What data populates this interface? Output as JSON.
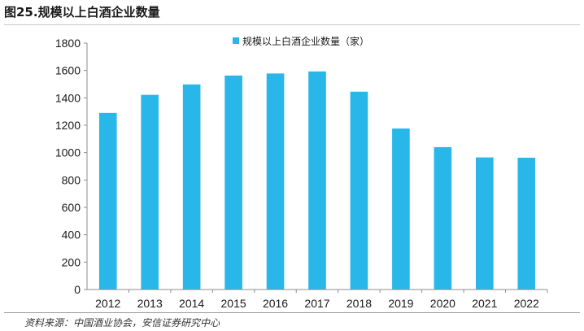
{
  "header": {
    "title": "图25.规模以上白酒企业数量"
  },
  "footer": {
    "source": "资料来源：中国酒业协会，安信证券研究中心"
  },
  "colors": {
    "bar": "#29B6E8",
    "axis": "#8c8c8c"
  },
  "chart_data": {
    "type": "bar",
    "title": "",
    "xlabel": "",
    "ylabel": "",
    "categories": [
      "2012",
      "2013",
      "2014",
      "2015",
      "2016",
      "2017",
      "2018",
      "2019",
      "2020",
      "2021",
      "2022"
    ],
    "series": [
      {
        "name": "规模以上白酒企业数量（家）",
        "values": [
          1290,
          1422,
          1498,
          1563,
          1578,
          1593,
          1445,
          1176,
          1040,
          965,
          963
        ]
      }
    ],
    "ylim": [
      0,
      1800
    ],
    "yticks": [
      0,
      200,
      400,
      600,
      800,
      1000,
      1200,
      1400,
      1600,
      1800
    ],
    "grid": false,
    "legend": "top-center"
  }
}
